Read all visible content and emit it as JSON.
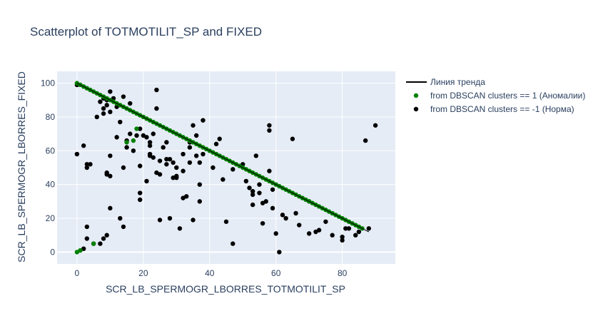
{
  "chart_data": {
    "type": "scatter",
    "title": "Scatterplot of TOTMOTILIT_SP and FIXED",
    "xlabel": "SCR_LB_SPERMOGR_LBORRES_TOTMOTILIT_SP",
    "ylabel": "SCR_LB_SPERMOGR_LBORRES_FIXED",
    "xlim": [
      -6,
      96
    ],
    "ylim": [
      -7,
      107
    ],
    "xticks": [
      0,
      20,
      40,
      60,
      80
    ],
    "yticks": [
      0,
      20,
      40,
      60,
      80,
      100
    ],
    "grid": true,
    "legend_position": "top-right",
    "colors": {
      "trend": "#000000",
      "anomaly": "#008000",
      "normal": "#000000",
      "plot_bg": "#e5ecf6",
      "text": "#2a3f5f"
    },
    "series": [
      {
        "name": "Линия тренда",
        "kind": "line",
        "x": [
          0,
          88
        ],
        "y": [
          100,
          12
        ]
      },
      {
        "name": "from DBSCAN clusters == 1 (Аномалии)",
        "kind": "markers",
        "x": [
          0,
          1,
          2,
          3,
          4,
          5,
          6,
          7,
          8,
          9,
          10,
          11,
          12,
          13,
          14,
          15,
          16,
          17,
          18,
          19,
          20,
          21,
          22,
          23,
          24,
          25,
          26,
          27,
          28,
          29,
          30,
          31,
          32,
          33,
          34,
          35,
          36,
          37,
          38,
          39,
          40,
          41,
          42,
          43,
          44,
          45,
          46,
          47,
          48,
          49,
          50,
          51,
          52,
          53,
          54,
          55,
          56,
          57,
          58,
          59,
          60,
          61,
          62,
          63,
          64,
          65,
          66,
          67,
          68,
          69,
          70,
          71,
          72,
          73,
          74,
          75,
          76,
          77,
          78,
          79,
          80,
          81,
          82,
          83,
          84,
          85,
          86,
          0,
          1,
          5,
          15,
          17,
          18
        ],
        "y": [
          100,
          99,
          98,
          97,
          96,
          95,
          94,
          93,
          92,
          91,
          90,
          89,
          88,
          87,
          86,
          85,
          84,
          83,
          82,
          81,
          80,
          79,
          78,
          77,
          76,
          75,
          74,
          73,
          72,
          71,
          70,
          69,
          68,
          67,
          66,
          65,
          64,
          63,
          62,
          61,
          60,
          59,
          58,
          57,
          56,
          55,
          54,
          53,
          52,
          51,
          50,
          49,
          48,
          47,
          46,
          45,
          44,
          43,
          42,
          41,
          40,
          39,
          38,
          37,
          36,
          35,
          34,
          33,
          32,
          31,
          30,
          29,
          28,
          27,
          26,
          25,
          24,
          23,
          22,
          21,
          20,
          19,
          18,
          17,
          16,
          15,
          14,
          0,
          1,
          5,
          65,
          66,
          73
        ]
      },
      {
        "name": "from DBSCAN clusters == -1 (Норма)",
        "kind": "markers",
        "x": [
          0,
          0,
          2,
          3,
          3,
          3,
          4,
          6,
          7,
          8,
          8,
          8,
          9,
          9,
          9,
          10,
          10,
          10,
          11,
          12,
          13,
          13,
          14,
          14,
          15,
          15,
          16,
          18,
          19,
          19,
          19,
          20,
          22,
          22,
          22,
          23,
          23,
          24,
          24,
          25,
          25,
          26,
          27,
          27,
          28,
          29,
          29,
          30,
          30,
          31,
          32,
          32,
          33,
          34,
          34,
          35,
          35,
          36,
          37,
          37,
          37,
          38,
          41,
          43,
          44,
          45,
          47,
          50,
          52,
          53,
          53,
          54,
          55,
          56,
          57,
          58,
          58,
          59,
          60,
          61,
          65,
          66,
          70,
          72,
          80,
          81,
          84,
          87,
          90,
          2,
          3,
          5,
          7,
          8,
          9,
          9,
          10,
          10,
          12,
          14,
          16,
          17,
          19,
          21,
          21,
          22,
          24,
          25,
          27,
          28,
          30,
          32,
          34,
          36,
          38,
          42,
          47,
          51,
          53,
          56,
          59,
          62,
          67,
          73,
          77,
          80,
          55,
          58,
          63,
          70,
          75,
          82,
          85,
          88
        ],
        "y": [
          58,
          99,
          2,
          8,
          15,
          50,
          52,
          80,
          5,
          8,
          82,
          91,
          10,
          46,
          47,
          26,
          45,
          57,
          91,
          68,
          20,
          77,
          50,
          92,
          62,
          66,
          70,
          69,
          35,
          31,
          51,
          69,
          57,
          58,
          63,
          56,
          70,
          47,
          96,
          19,
          54,
          62,
          55,
          65,
          55,
          53,
          44,
          44,
          50,
          14,
          32,
          48,
          33,
          65,
          62,
          75,
          19,
          69,
          53,
          30,
          40,
          78,
          50,
          67,
          43,
          18,
          5,
          52,
          38,
          28,
          36,
          57,
          35,
          17,
          30,
          75,
          72,
          37,
          11,
          0,
          67,
          23,
          11,
          12,
          9,
          14,
          10,
          66,
          75,
          63,
          52,
          5,
          89,
          85,
          87,
          90,
          95,
          83,
          86,
          15,
          88,
          60,
          73,
          68,
          42,
          65,
          85,
          46,
          52,
          20,
          45,
          58,
          53,
          57,
          58,
          64,
          49,
          42,
          34,
          29,
          26,
          22,
          16,
          13,
          10,
          7,
          40,
          48,
          20,
          30,
          18,
          14,
          12,
          14
        ]
      }
    ]
  }
}
